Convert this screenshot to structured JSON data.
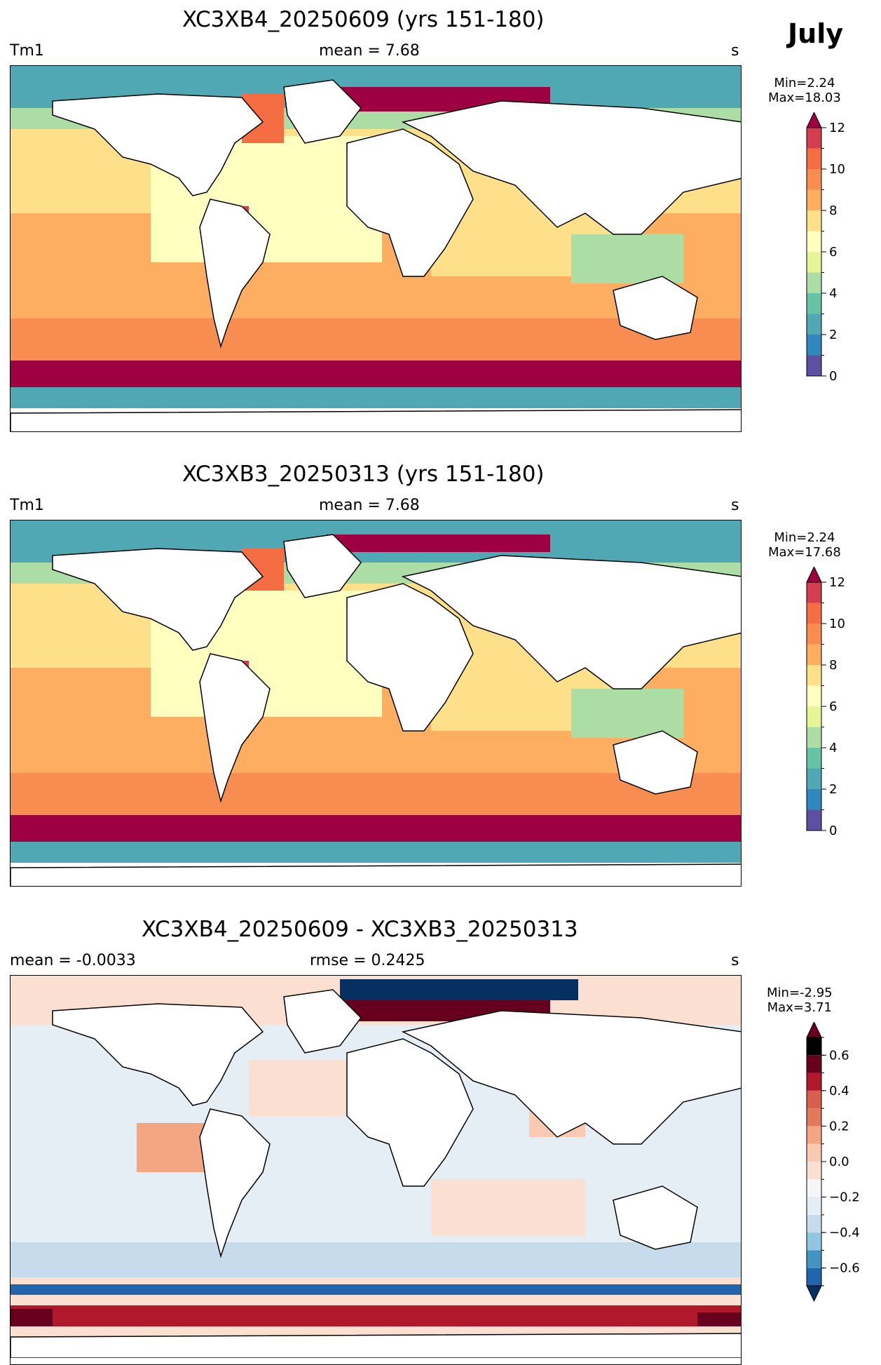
{
  "month": "July",
  "panels": [
    {
      "title": "XC3XB4_20250609 (yrs 151-180)",
      "left": "Tm1",
      "center": "mean = 7.68",
      "right": "s",
      "minmax": [
        "Min=2.24",
        "Max=18.03"
      ]
    },
    {
      "title": "XC3XB3_20250313 (yrs 151-180)",
      "left": "Tm1",
      "center": "mean = 7.68",
      "right": "s",
      "minmax": [
        "Min=2.24",
        "Max=17.68"
      ]
    },
    {
      "title": "XC3XB4_20250609 - XC3XB3_20250313",
      "left": "mean = -0.0033",
      "center": "rmse = 0.2425",
      "right": "s",
      "minmax": [
        "Min=-2.95",
        "Max=3.71"
      ]
    }
  ],
  "chart_data": [
    {
      "type": "heatmap",
      "title": "XC3XB4_20250609 (yrs 151-180)",
      "variable": "Tm1",
      "units": "s",
      "mean": 7.68,
      "min": 2.24,
      "max": 18.03,
      "colorbar": {
        "levels": [
          0,
          1,
          2,
          3,
          4,
          5,
          6,
          7,
          8,
          9,
          10,
          11,
          12
        ],
        "tick_labels": [
          "0",
          "2",
          "4",
          "6",
          "8",
          "10",
          "12"
        ],
        "colors": [
          "#5e4fa2",
          "#3288bd",
          "#4fa8b4",
          "#66c2a5",
          "#abdda4",
          "#e6f598",
          "#ffffbf",
          "#fee08b",
          "#fdae61",
          "#f88d52",
          "#f46d43",
          "#d53e4f",
          "#9e0142"
        ],
        "extend": "max"
      }
    },
    {
      "type": "heatmap",
      "title": "XC3XB3_20250313 (yrs 151-180)",
      "variable": "Tm1",
      "units": "s",
      "mean": 7.68,
      "min": 2.24,
      "max": 17.68,
      "colorbar": {
        "levels": [
          0,
          1,
          2,
          3,
          4,
          5,
          6,
          7,
          8,
          9,
          10,
          11,
          12
        ],
        "tick_labels": [
          "0",
          "2",
          "4",
          "6",
          "8",
          "10",
          "12"
        ],
        "colors": [
          "#5e4fa2",
          "#3288bd",
          "#4fa8b4",
          "#66c2a5",
          "#abdda4",
          "#e6f598",
          "#ffffbf",
          "#fee08b",
          "#fdae61",
          "#f88d52",
          "#f46d43",
          "#d53e4f",
          "#9e0142"
        ],
        "extend": "max"
      }
    },
    {
      "type": "heatmap",
      "title": "XC3XB4_20250609 - XC3XB3_20250313",
      "units": "s",
      "mean": -0.0033,
      "rmse": 0.2425,
      "min": -2.95,
      "max": 3.71,
      "colorbar": {
        "levels": [
          -0.7,
          -0.6,
          -0.5,
          -0.4,
          -0.3,
          -0.2,
          -0.1,
          0.0,
          0.1,
          0.2,
          0.3,
          0.4,
          0.5,
          0.6,
          0.7
        ],
        "tick_labels": [
          "−0.6",
          "−0.4",
          "−0.2",
          "0.0",
          "0.2",
          "0.4",
          "0.6"
        ],
        "tick_values": [
          -0.6,
          -0.4,
          -0.2,
          0.0,
          0.2,
          0.4,
          0.6
        ],
        "colors": [
          "#053061",
          "#2166ac",
          "#4393c3",
          "#92c5de",
          "#c6dcec",
          "#e4eef4",
          "#f4f6f8",
          "#fbe0d2",
          "#f9c9b2",
          "#f4a582",
          "#e2795d",
          "#d6604d",
          "#b2182b",
          "#67001f"
        ],
        "extend": "both"
      }
    }
  ]
}
